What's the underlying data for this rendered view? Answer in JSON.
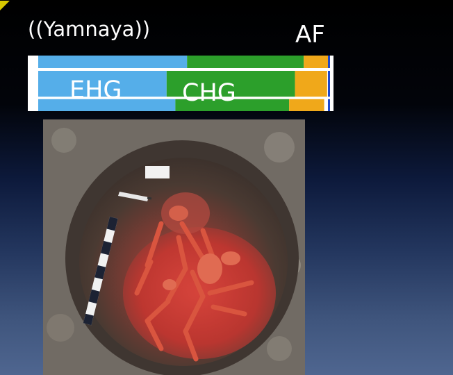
{
  "slide": {
    "title": "((Yamnaya))",
    "af_label": "AF"
  },
  "colors": {
    "ehg": "#55aee9",
    "chg": "#2c9f2b",
    "af": "#f0a81a",
    "blue_edge": "#1c47cc"
  },
  "chart_data": {
    "type": "bar",
    "orientation": "horizontal-stacked",
    "categories": [
      "",
      "",
      ""
    ],
    "series": [
      {
        "name": "EHG",
        "values": [
          0.51,
          0.44,
          0.47
        ]
      },
      {
        "name": "CHG",
        "values": [
          0.4,
          0.44,
          0.39
        ]
      },
      {
        "name": "AF",
        "values": [
          0.09,
          0.11,
          0.12
        ]
      }
    ],
    "labels": [
      "EHG",
      "CHG"
    ]
  },
  "photo": {
    "icon": "excavated-burial-photo"
  }
}
